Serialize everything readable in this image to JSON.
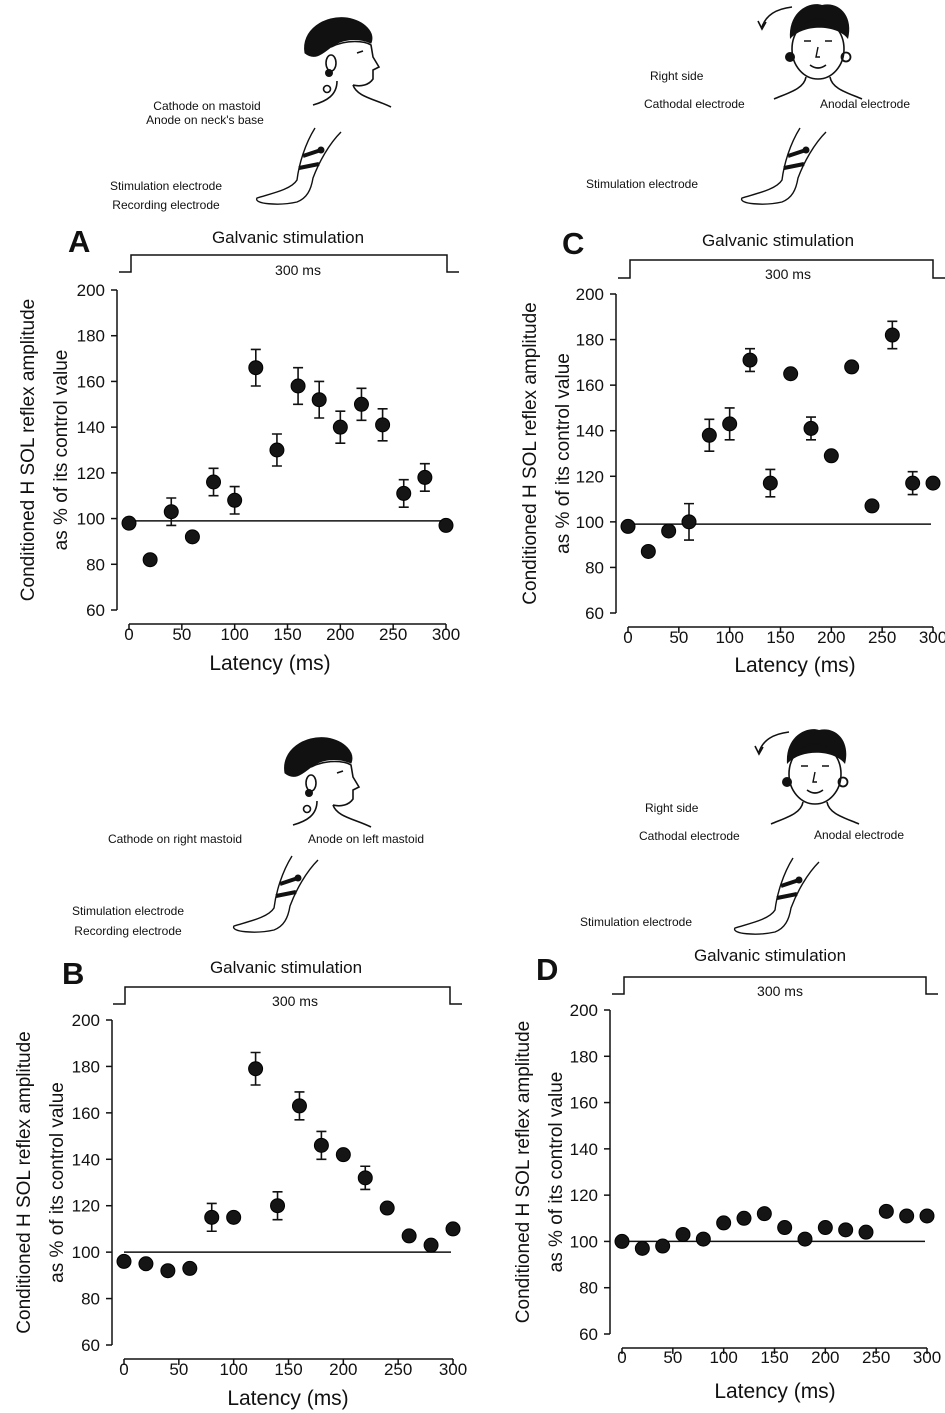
{
  "panels": [
    {
      "id": "A",
      "letter": "A",
      "stim_title": "Galvanic stimulation",
      "duration_label": "300 ms",
      "ylabel_line1": "Conditioned H SOL reflex amplitude",
      "ylabel_line2": "as % of its control value",
      "xlabel": "Latency (ms)",
      "head": "profile",
      "labels": [
        "Cathode on mastoid",
        "Anode on neck's base",
        "Stimulation electrode",
        "Recording electrode"
      ]
    },
    {
      "id": "B",
      "letter": "B",
      "stim_title": "Galvanic stimulation",
      "duration_label": "300 ms",
      "ylabel_line1": "Conditioned H SOL reflex amplitude",
      "ylabel_line2": "as % of its control value",
      "xlabel": "Latency (ms)",
      "head": "profile",
      "labels": [
        "Cathode on right mastoid",
        "Anode on left mastoid",
        "Stimulation electrode",
        "Recording electrode"
      ]
    },
    {
      "id": "C",
      "letter": "C",
      "stim_title": "Galvanic stimulation",
      "duration_label": "300 ms",
      "ylabel_line1": "Conditioned H SOL reflex amplitude",
      "ylabel_line2": "as % of its control value",
      "xlabel": "Latency (ms)",
      "head": "frontal",
      "labels": [
        "Right side",
        "Cathodal electrode",
        "Anodal electrode",
        "Stimulation electrode"
      ]
    },
    {
      "id": "D",
      "letter": "D",
      "stim_title": "Galvanic stimulation",
      "duration_label": "300 ms",
      "ylabel_line1": "Conditioned H SOL reflex amplitude",
      "ylabel_line2": "as % of its control value",
      "xlabel": "Latency (ms)",
      "head": "frontal",
      "labels": [
        "Right side",
        "Cathodal electrode",
        "Anodal electrode",
        "Stimulation electrode"
      ]
    }
  ],
  "chart_data": [
    {
      "panel": "A",
      "type": "scatter",
      "title": "Galvanic stimulation",
      "xlabel": "Latency (ms)",
      "ylabel": "Conditioned H SOL reflex amplitude as % of its control value",
      "xlim": [
        0,
        300
      ],
      "ylim": [
        60,
        200
      ],
      "xticks": [
        0,
        50,
        100,
        150,
        200,
        250,
        300
      ],
      "yticks": [
        60,
        80,
        100,
        120,
        140,
        160,
        180,
        200
      ],
      "baseline": 99,
      "series": [
        {
          "x": [
            0,
            20,
            40,
            60,
            80,
            100,
            120,
            140,
            160,
            180,
            200,
            220,
            240,
            260,
            280,
            300
          ],
          "y": [
            98,
            82,
            103,
            92,
            116,
            108,
            166,
            130,
            158,
            152,
            140,
            150,
            141,
            111,
            118,
            97
          ],
          "error": [
            0,
            0,
            6,
            0,
            6,
            6,
            8,
            7,
            8,
            8,
            7,
            7,
            7,
            6,
            6,
            0
          ]
        }
      ]
    },
    {
      "panel": "B",
      "type": "scatter",
      "title": "Galvanic stimulation",
      "xlabel": "Latency (ms)",
      "ylabel": "Conditioned H SOL reflex amplitude as % of its control value",
      "xlim": [
        0,
        300
      ],
      "ylim": [
        60,
        200
      ],
      "xticks": [
        0,
        50,
        100,
        150,
        200,
        250,
        300
      ],
      "yticks": [
        60,
        80,
        100,
        120,
        140,
        160,
        180,
        200
      ],
      "baseline": 100,
      "series": [
        {
          "x": [
            0,
            20,
            40,
            60,
            80,
            100,
            120,
            140,
            160,
            180,
            200,
            220,
            240,
            260,
            280,
            300
          ],
          "y": [
            96,
            95,
            92,
            93,
            115,
            115,
            179,
            120,
            163,
            146,
            142,
            132,
            119,
            107,
            103,
            110
          ],
          "error": [
            0,
            0,
            0,
            0,
            6,
            0,
            7,
            6,
            6,
            6,
            0,
            5,
            0,
            0,
            0,
            0
          ]
        }
      ]
    },
    {
      "panel": "C",
      "type": "scatter",
      "title": "Galvanic stimulation",
      "xlabel": "Latency (ms)",
      "ylabel": "Conditioned H SOL reflex amplitude as % of its control value",
      "xlim": [
        0,
        300
      ],
      "ylim": [
        60,
        200
      ],
      "xticks": [
        0,
        50,
        100,
        150,
        200,
        250,
        300
      ],
      "yticks": [
        60,
        80,
        100,
        120,
        140,
        160,
        180,
        200
      ],
      "baseline": 99,
      "series": [
        {
          "x": [
            0,
            20,
            40,
            60,
            80,
            100,
            120,
            140,
            160,
            180,
            200,
            220,
            240,
            260,
            280,
            300
          ],
          "y": [
            98,
            87,
            96,
            100,
            138,
            143,
            171,
            117,
            165,
            141,
            129,
            168,
            107,
            182,
            117,
            117
          ],
          "error": [
            0,
            0,
            0,
            8,
            7,
            7,
            5,
            6,
            0,
            5,
            0,
            0,
            0,
            6,
            5,
            0
          ]
        }
      ]
    },
    {
      "panel": "D",
      "type": "scatter",
      "title": "Galvanic stimulation",
      "xlabel": "Latency (ms)",
      "ylabel": "Conditioned H SOL reflex amplitude as % of its control value",
      "xlim": [
        0,
        300
      ],
      "ylim": [
        60,
        200
      ],
      "xticks": [
        0,
        50,
        100,
        150,
        200,
        250,
        300
      ],
      "yticks": [
        60,
        80,
        100,
        120,
        140,
        160,
        180,
        200
      ],
      "baseline": 100,
      "series": [
        {
          "x": [
            0,
            20,
            40,
            60,
            80,
            100,
            120,
            140,
            160,
            180,
            200,
            220,
            240,
            260,
            280,
            300
          ],
          "y": [
            100,
            97,
            98,
            103,
            101,
            108,
            110,
            112,
            106,
            101,
            106,
            105,
            104,
            113,
            111,
            111
          ],
          "error": [
            0,
            0,
            0,
            0,
            0,
            0,
            0,
            0,
            0,
            0,
            0,
            0,
            0,
            0,
            0,
            0
          ]
        }
      ]
    }
  ]
}
